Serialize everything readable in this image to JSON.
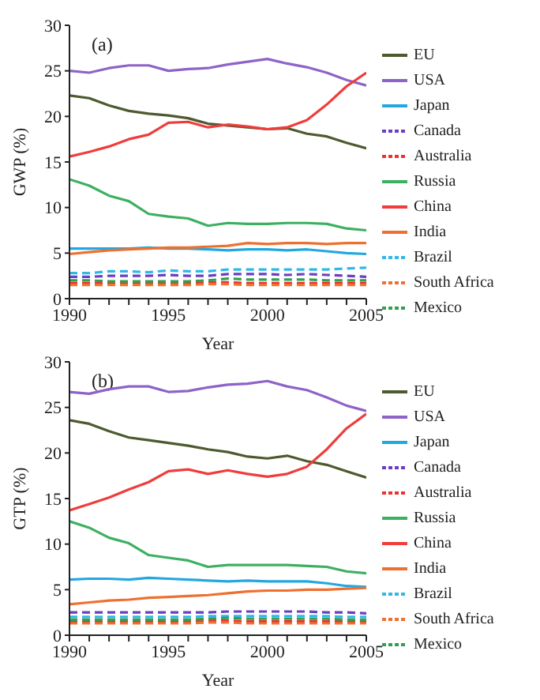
{
  "chart_data": [
    {
      "type": "line",
      "xlabel": "Year",
      "ylabel": "GWP (%)",
      "annotations": [
        "(a)"
      ],
      "legend": "right",
      "x": [
        1990,
        1991,
        1992,
        1993,
        1994,
        1995,
        1996,
        1997,
        1998,
        1999,
        2000,
        2001,
        2002,
        2003,
        2004,
        2005
      ],
      "xlim": [
        1990,
        2005
      ],
      "xticks": [
        1990,
        {
          "value": 1991,
          "label": null
        },
        {
          "value": 1992,
          "label": null
        },
        {
          "value": 1993,
          "label": null
        },
        {
          "value": 1994,
          "label": null
        },
        1995,
        {
          "value": 1996,
          "label": null
        },
        {
          "value": 1997,
          "label": null
        },
        {
          "value": 1998,
          "label": null
        },
        {
          "value": 1999,
          "label": null
        },
        2000,
        {
          "value": 2001,
          "label": null
        },
        {
          "value": 2002,
          "label": null
        },
        {
          "value": 2003,
          "label": null
        },
        {
          "value": 2004,
          "label": null
        },
        2005
      ],
      "ylim": [
        0,
        30
      ],
      "yticks": [
        0,
        5,
        10,
        15,
        20,
        25,
        30
      ],
      "series": [
        {
          "name": "EU",
          "color": "#4d5a2e",
          "line_style": "solid",
          "values": [
            22.3,
            22.0,
            21.2,
            20.6,
            20.3,
            20.1,
            19.8,
            19.2,
            19.0,
            18.8,
            18.6,
            18.7,
            18.1,
            17.8,
            17.1,
            16.5
          ]
        },
        {
          "name": "USA",
          "color": "#8e63c8",
          "line_style": "solid",
          "values": [
            25.0,
            24.8,
            25.3,
            25.6,
            25.6,
            25.0,
            25.2,
            25.3,
            25.7,
            26.0,
            26.3,
            25.8,
            25.4,
            24.8,
            24.0,
            23.4
          ]
        },
        {
          "name": "Japan",
          "color": "#22a8e0",
          "line_style": "solid",
          "values": [
            5.5,
            5.5,
            5.5,
            5.5,
            5.6,
            5.5,
            5.5,
            5.4,
            5.3,
            5.4,
            5.4,
            5.3,
            5.4,
            5.2,
            5.0,
            4.9
          ]
        },
        {
          "name": "Canada",
          "color": "#6a3fc0",
          "line_style": "dashed",
          "values": [
            2.4,
            2.4,
            2.5,
            2.5,
            2.5,
            2.6,
            2.5,
            2.5,
            2.7,
            2.7,
            2.7,
            2.6,
            2.7,
            2.6,
            2.5,
            2.4
          ]
        },
        {
          "name": "Australia",
          "color": "#ee3030",
          "line_style": "dashed",
          "values": [
            1.7,
            1.7,
            1.7,
            1.7,
            1.7,
            1.7,
            1.7,
            1.8,
            1.8,
            1.7,
            1.7,
            1.7,
            1.7,
            1.7,
            1.7,
            1.7
          ]
        },
        {
          "name": "Russia",
          "color": "#3cb060",
          "line_style": "solid",
          "values": [
            13.1,
            12.4,
            11.3,
            10.7,
            9.3,
            9.0,
            8.8,
            8.0,
            8.3,
            8.2,
            8.2,
            8.3,
            8.3,
            8.2,
            7.7,
            7.5
          ]
        },
        {
          "name": "China",
          "color": "#f03c3c",
          "line_style": "solid",
          "values": [
            15.6,
            16.1,
            16.7,
            17.5,
            18.0,
            19.3,
            19.4,
            18.8,
            19.1,
            18.9,
            18.6,
            18.8,
            19.6,
            21.3,
            23.3,
            24.8
          ]
        },
        {
          "name": "India",
          "color": "#ee7030",
          "line_style": "solid",
          "values": [
            4.9,
            5.1,
            5.3,
            5.4,
            5.5,
            5.6,
            5.6,
            5.7,
            5.8,
            6.1,
            6.0,
            6.1,
            6.1,
            6.0,
            6.1,
            6.1
          ]
        },
        {
          "name": "Brazil",
          "color": "#30b8e8",
          "line_style": "dashed",
          "values": [
            2.8,
            2.8,
            3.0,
            3.0,
            2.9,
            3.1,
            3.0,
            3.0,
            3.2,
            3.2,
            3.2,
            3.2,
            3.2,
            3.2,
            3.3,
            3.4
          ]
        },
        {
          "name": "South Africa",
          "color": "#f07030",
          "line_style": "dashed",
          "values": [
            1.5,
            1.5,
            1.5,
            1.5,
            1.5,
            1.5,
            1.5,
            1.6,
            1.6,
            1.5,
            1.5,
            1.5,
            1.5,
            1.5,
            1.5,
            1.5
          ]
        },
        {
          "name": "Mexico",
          "color": "#30a050",
          "line_style": "dashed",
          "values": [
            2.0,
            2.0,
            1.9,
            1.9,
            1.9,
            1.9,
            1.9,
            2.0,
            2.2,
            2.1,
            2.1,
            2.1,
            2.1,
            2.0,
            2.0,
            2.0
          ]
        }
      ]
    },
    {
      "type": "line",
      "xlabel": "Year",
      "ylabel": "GTP (%)",
      "annotations": [
        "(b)"
      ],
      "legend": "right",
      "x": [
        1990,
        1991,
        1992,
        1993,
        1994,
        1995,
        1996,
        1997,
        1998,
        1999,
        2000,
        2001,
        2002,
        2003,
        2004,
        2005
      ],
      "xlim": [
        1990,
        2005
      ],
      "xticks": [
        1990,
        {
          "value": 1991,
          "label": null
        },
        {
          "value": 1992,
          "label": null
        },
        {
          "value": 1993,
          "label": null
        },
        {
          "value": 1994,
          "label": null
        },
        1995,
        {
          "value": 1996,
          "label": null
        },
        {
          "value": 1997,
          "label": null
        },
        {
          "value": 1998,
          "label": null
        },
        {
          "value": 1999,
          "label": null
        },
        2000,
        {
          "value": 2001,
          "label": null
        },
        {
          "value": 2002,
          "label": null
        },
        {
          "value": 2003,
          "label": null
        },
        {
          "value": 2004,
          "label": null
        },
        2005
      ],
      "ylim": [
        0,
        30
      ],
      "yticks": [
        0,
        5,
        10,
        15,
        20,
        25,
        30
      ],
      "series": [
        {
          "name": "EU",
          "color": "#4d5a2e",
          "line_style": "solid",
          "values": [
            23.6,
            23.2,
            22.4,
            21.7,
            21.4,
            21.1,
            20.8,
            20.4,
            20.1,
            19.6,
            19.4,
            19.7,
            19.1,
            18.7,
            18.0,
            17.3
          ]
        },
        {
          "name": "USA",
          "color": "#8e63c8",
          "line_style": "solid",
          "values": [
            26.7,
            26.5,
            27.0,
            27.3,
            27.3,
            26.7,
            26.8,
            27.2,
            27.5,
            27.6,
            27.9,
            27.3,
            26.9,
            26.1,
            25.2,
            24.6
          ]
        },
        {
          "name": "Japan",
          "color": "#22a8e0",
          "line_style": "solid",
          "values": [
            6.1,
            6.2,
            6.2,
            6.1,
            6.3,
            6.2,
            6.1,
            6.0,
            5.9,
            6.0,
            5.9,
            5.9,
            5.9,
            5.7,
            5.4,
            5.3
          ]
        },
        {
          "name": "Canada",
          "color": "#6a3fc0",
          "line_style": "dashed",
          "values": [
            2.5,
            2.5,
            2.5,
            2.5,
            2.5,
            2.5,
            2.5,
            2.5,
            2.6,
            2.6,
            2.6,
            2.6,
            2.6,
            2.5,
            2.5,
            2.4
          ]
        },
        {
          "name": "Australia",
          "color": "#ee3030",
          "line_style": "dashed",
          "values": [
            1.5,
            1.5,
            1.5,
            1.5,
            1.5,
            1.5,
            1.5,
            1.6,
            1.6,
            1.5,
            1.5,
            1.5,
            1.5,
            1.5,
            1.5,
            1.5
          ]
        },
        {
          "name": "Russia",
          "color": "#3cb060",
          "line_style": "solid",
          "values": [
            12.5,
            11.8,
            10.7,
            10.1,
            8.8,
            8.5,
            8.2,
            7.5,
            7.7,
            7.7,
            7.7,
            7.7,
            7.6,
            7.5,
            7.0,
            6.8
          ]
        },
        {
          "name": "China",
          "color": "#f03c3c",
          "line_style": "solid",
          "values": [
            13.7,
            14.4,
            15.1,
            16.0,
            16.8,
            18.0,
            18.2,
            17.7,
            18.1,
            17.7,
            17.4,
            17.7,
            18.5,
            20.4,
            22.7,
            24.3
          ]
        },
        {
          "name": "India",
          "color": "#ee7030",
          "line_style": "solid",
          "values": [
            3.4,
            3.6,
            3.8,
            3.9,
            4.1,
            4.2,
            4.3,
            4.4,
            4.6,
            4.8,
            4.9,
            4.9,
            5.0,
            5.0,
            5.1,
            5.2
          ]
        },
        {
          "name": "Brazil",
          "color": "#30b8e8",
          "line_style": "dashed",
          "values": [
            2.0,
            2.0,
            2.0,
            2.0,
            2.0,
            2.0,
            2.0,
            2.1,
            2.1,
            2.1,
            2.1,
            2.1,
            2.1,
            2.1,
            2.0,
            2.0
          ]
        },
        {
          "name": "South Africa",
          "color": "#f07030",
          "line_style": "dashed",
          "values": [
            1.3,
            1.3,
            1.3,
            1.3,
            1.3,
            1.3,
            1.3,
            1.4,
            1.4,
            1.3,
            1.3,
            1.3,
            1.3,
            1.3,
            1.3,
            1.3
          ]
        },
        {
          "name": "Mexico",
          "color": "#30a050",
          "line_style": "dashed",
          "values": [
            1.7,
            1.7,
            1.7,
            1.7,
            1.7,
            1.7,
            1.7,
            1.8,
            1.9,
            1.8,
            1.8,
            1.8,
            1.8,
            1.8,
            1.7,
            1.7
          ]
        }
      ]
    }
  ]
}
